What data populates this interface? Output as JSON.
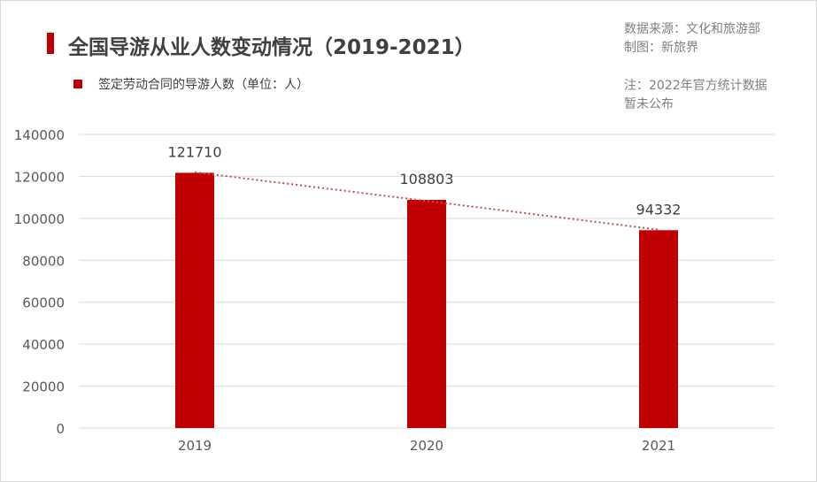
{
  "header": {
    "title": "全国导游从业人数变动情况（2019-2021）",
    "source_line1": "数据来源：文化和旅游部",
    "source_line2": "制图：新旅界",
    "note_line1": "注：2022年官方统计数据",
    "note_line2": "暂未公布"
  },
  "colors": {
    "bar": "#c00000",
    "trendline": "#c0504d",
    "grid": "#d9d9d9",
    "axis_text": "#595959"
  },
  "chart_data": {
    "type": "bar",
    "categories": [
      "2019",
      "2020",
      "2021"
    ],
    "series": [
      {
        "name": "签定劳动合同的导游人数（单位：人）",
        "values": [
          121710,
          108803,
          94332
        ]
      }
    ],
    "data_labels": [
      "121710",
      "108803",
      "94332"
    ],
    "y_ticks": [
      0,
      20000,
      40000,
      60000,
      80000,
      100000,
      120000,
      140000
    ],
    "y_tick_labels": [
      "0",
      "20000",
      "40000",
      "60000",
      "80000",
      "100000",
      "120000",
      "140000"
    ],
    "ylim": [
      0,
      140000
    ],
    "grid": true,
    "legend_position": "top-left",
    "trendline": "linear, dotted",
    "title": "全国导游从业人数变动情况（2019-2021）",
    "xlabel": "",
    "ylabel": ""
  }
}
